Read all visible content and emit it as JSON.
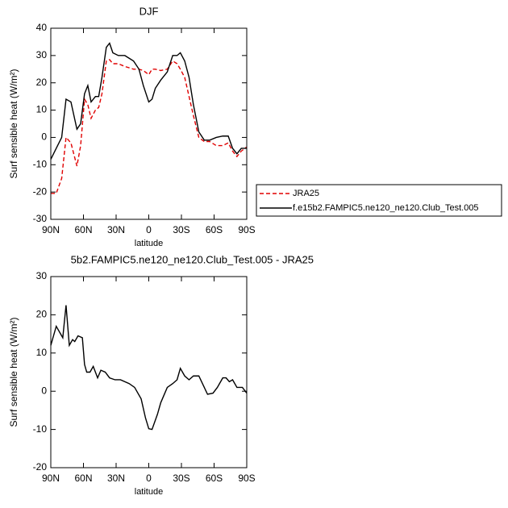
{
  "chart_data": [
    {
      "type": "line",
      "title": "DJF",
      "xlabel": "latitude",
      "ylabel": "Surf sensible heat (W/m²)",
      "x": [
        90,
        85,
        80,
        76,
        71.5,
        66,
        62.6,
        59,
        56,
        53,
        49,
        46,
        43,
        39,
        36,
        33,
        28,
        22,
        14,
        9,
        5,
        0,
        -3,
        -6,
        -11,
        -17,
        -22,
        -26,
        -29,
        -33,
        -37,
        -41,
        -46,
        -51,
        -56,
        -62,
        -68,
        -73,
        -77,
        -81,
        -85,
        -90
      ],
      "series": [
        {
          "name": "JRA25",
          "color": "#e00000",
          "dashed": true,
          "values": [
            -20.5,
            -20.5,
            -15,
            0,
            -2,
            -10.5,
            -3,
            14,
            12,
            7,
            10,
            11,
            16,
            28,
            28.5,
            27,
            27,
            26,
            25,
            25,
            24.5,
            23,
            25,
            25,
            24.5,
            25,
            28,
            27,
            25,
            22,
            15,
            8,
            0,
            -1.5,
            -1.5,
            -3,
            -3,
            -2,
            -5,
            -7,
            -5,
            -3.5
          ]
        },
        {
          "name": "f.e15b2.FAMPIC5.ne120_ne120.Club_Test.005",
          "color": "#000000",
          "dashed": false,
          "values": [
            -8,
            -4,
            0,
            14,
            13,
            3,
            5,
            16,
            19,
            13,
            15,
            15,
            22,
            33,
            34.5,
            31,
            30,
            30,
            28,
            25,
            19,
            13,
            14,
            18,
            21,
            24,
            30,
            30,
            31,
            28,
            22,
            12,
            2,
            -1,
            -1,
            0,
            0.5,
            0.5,
            -4,
            -6,
            -4,
            -4
          ]
        }
      ],
      "xlim": [
        90,
        -90
      ],
      "xticks": [
        {
          "value": 90,
          "label": "90N"
        },
        {
          "value": 60,
          "label": "60N"
        },
        {
          "value": 30,
          "label": "30N"
        },
        0,
        {
          "value": -30,
          "label": "30S"
        },
        {
          "value": -60,
          "label": "60S"
        },
        {
          "value": -90,
          "label": "90S"
        }
      ],
      "ylim": [
        -30,
        40
      ],
      "yticks": [
        -30,
        -20,
        -10,
        0,
        10,
        20,
        30,
        40
      ],
      "legend": true
    },
    {
      "type": "line",
      "title": "5b2.FAMPIC5.ne120_ne120.Club_Test.005 - JRA25",
      "xlabel": "latitude",
      "ylabel": "Surf sensible heat (W/m²)",
      "x": [
        90,
        85,
        79,
        76,
        73,
        70,
        68,
        65,
        61,
        59,
        57,
        54,
        51,
        47,
        44,
        40,
        36,
        31,
        26,
        18,
        13,
        7,
        3,
        0,
        -3,
        -8,
        -11,
        -17,
        -22,
        -26,
        -29,
        -33,
        -37,
        -41,
        -46,
        -51,
        -54,
        -59,
        -63,
        -68,
        -71,
        -74,
        -77,
        -81,
        -86,
        -90
      ],
      "series": [
        {
          "color": "#000000",
          "dashed": false,
          "values": [
            12,
            17,
            14,
            22.5,
            12,
            13.5,
            13,
            14.5,
            14,
            7,
            5,
            5,
            6.5,
            3.5,
            5.5,
            5,
            3.5,
            3,
            3,
            2,
            1,
            -2,
            -7,
            -9.8,
            -10,
            -6,
            -3,
            1,
            2,
            3,
            6,
            4,
            3,
            4,
            4,
            1,
            -0.8,
            -0.5,
            1,
            3.5,
            3.5,
            2.5,
            3,
            1,
            1,
            -0.5
          ]
        }
      ],
      "xlim": [
        90,
        -90
      ],
      "xticks": [
        {
          "value": 90,
          "label": "90N"
        },
        {
          "value": 60,
          "label": "60N"
        },
        {
          "value": 30,
          "label": "30N"
        },
        0,
        {
          "value": -30,
          "label": "30S"
        },
        {
          "value": -60,
          "label": "60S"
        },
        {
          "value": -90,
          "label": "90S"
        }
      ],
      "ylim": [
        -20,
        30
      ],
      "yticks": [
        -20,
        -10,
        0,
        10,
        20,
        30
      ],
      "legend": false
    }
  ]
}
